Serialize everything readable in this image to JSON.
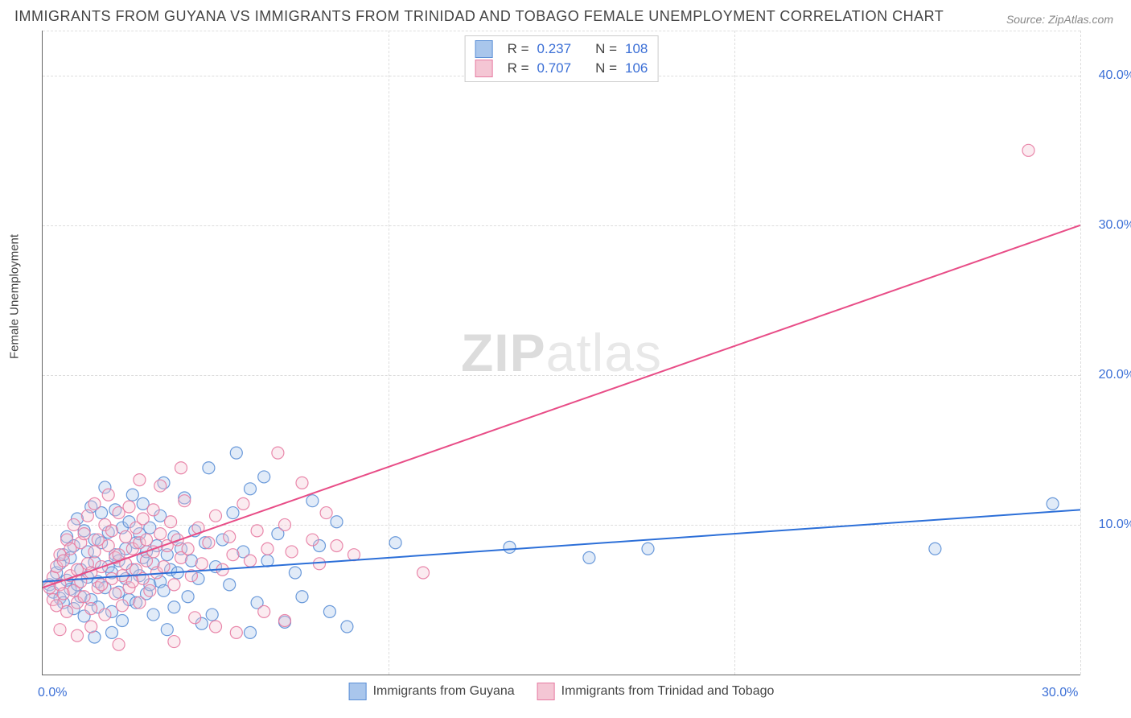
{
  "title": "IMMIGRANTS FROM GUYANA VS IMMIGRANTS FROM TRINIDAD AND TOBAGO FEMALE UNEMPLOYMENT CORRELATION CHART",
  "source": "Source: ZipAtlas.com",
  "y_axis_label": "Female Unemployment",
  "watermark_bold": "ZIP",
  "watermark_rest": "atlas",
  "chart": {
    "type": "scatter",
    "background_color": "#ffffff",
    "grid_color": "#dddddd",
    "axis_color": "#666666",
    "xlim": [
      0,
      30
    ],
    "ylim": [
      0,
      43
    ],
    "x_ticks": [
      0,
      10,
      20,
      30
    ],
    "x_tick_labels": [
      "0.0%",
      "",
      "",
      "30.0%"
    ],
    "y_ticks": [
      10,
      20,
      30,
      40
    ],
    "y_tick_labels": [
      "10.0%",
      "20.0%",
      "30.0%",
      "40.0%"
    ],
    "x_grid_positions": [
      10,
      20,
      30
    ],
    "y_grid_positions": [
      10,
      20,
      30,
      40,
      43
    ],
    "marker_radius": 7.5,
    "marker_stroke_opacity": 0.9
  },
  "series": [
    {
      "name": "Immigrants from Guyana",
      "color_fill": "#a9c6ec",
      "color_stroke": "#5b8fd6",
      "trend_color": "#2c6fd8",
      "R": "0.237",
      "N": "108",
      "trend": {
        "x1": 0,
        "y1": 6.2,
        "x2": 30,
        "y2": 11.0
      },
      "points": [
        [
          0.2,
          6.0
        ],
        [
          0.3,
          5.5
        ],
        [
          0.4,
          6.8
        ],
        [
          0.5,
          7.4
        ],
        [
          0.5,
          5.1
        ],
        [
          0.6,
          8.0
        ],
        [
          0.6,
          4.8
        ],
        [
          0.7,
          6.3
        ],
        [
          0.7,
          9.2
        ],
        [
          0.8,
          5.7
        ],
        [
          0.8,
          7.8
        ],
        [
          0.9,
          4.4
        ],
        [
          0.9,
          8.6
        ],
        [
          1.0,
          6.0
        ],
        [
          1.0,
          10.4
        ],
        [
          1.1,
          5.2
        ],
        [
          1.1,
          7.0
        ],
        [
          1.2,
          9.6
        ],
        [
          1.2,
          3.9
        ],
        [
          1.3,
          6.5
        ],
        [
          1.3,
          8.2
        ],
        [
          1.4,
          11.2
        ],
        [
          1.4,
          5.0
        ],
        [
          1.5,
          7.5
        ],
        [
          1.5,
          9.0
        ],
        [
          1.6,
          4.5
        ],
        [
          1.6,
          6.2
        ],
        [
          1.7,
          8.8
        ],
        [
          1.7,
          10.8
        ],
        [
          1.8,
          5.8
        ],
        [
          1.8,
          12.5
        ],
        [
          1.9,
          7.2
        ],
        [
          1.9,
          9.5
        ],
        [
          2.0,
          4.2
        ],
        [
          2.0,
          6.8
        ],
        [
          2.1,
          8.0
        ],
        [
          2.1,
          11.0
        ],
        [
          2.2,
          5.5
        ],
        [
          2.2,
          7.6
        ],
        [
          2.3,
          9.8
        ],
        [
          2.3,
          3.6
        ],
        [
          2.4,
          6.4
        ],
        [
          2.4,
          8.4
        ],
        [
          2.5,
          10.2
        ],
        [
          2.5,
          5.0
        ],
        [
          2.6,
          7.0
        ],
        [
          2.6,
          12.0
        ],
        [
          2.7,
          8.8
        ],
        [
          2.7,
          4.8
        ],
        [
          2.8,
          6.6
        ],
        [
          2.8,
          9.4
        ],
        [
          2.9,
          7.8
        ],
        [
          2.9,
          11.4
        ],
        [
          3.0,
          5.4
        ],
        [
          3.0,
          8.2
        ],
        [
          3.1,
          6.0
        ],
        [
          3.1,
          9.8
        ],
        [
          3.2,
          7.4
        ],
        [
          3.2,
          4.0
        ],
        [
          3.3,
          8.6
        ],
        [
          3.4,
          6.2
        ],
        [
          3.4,
          10.6
        ],
        [
          3.5,
          12.8
        ],
        [
          3.5,
          5.6
        ],
        [
          3.6,
          8.0
        ],
        [
          3.7,
          7.0
        ],
        [
          3.8,
          9.2
        ],
        [
          3.8,
          4.5
        ],
        [
          3.9,
          6.8
        ],
        [
          4.0,
          8.4
        ],
        [
          4.1,
          11.8
        ],
        [
          4.2,
          5.2
        ],
        [
          4.3,
          7.6
        ],
        [
          4.4,
          9.6
        ],
        [
          4.5,
          6.4
        ],
        [
          4.7,
          8.8
        ],
        [
          4.8,
          13.8
        ],
        [
          4.9,
          4.0
        ],
        [
          5.0,
          7.2
        ],
        [
          5.2,
          9.0
        ],
        [
          5.4,
          6.0
        ],
        [
          5.5,
          10.8
        ],
        [
          5.8,
          8.2
        ],
        [
          6.0,
          12.4
        ],
        [
          6.2,
          4.8
        ],
        [
          6.5,
          7.6
        ],
        [
          6.8,
          9.4
        ],
        [
          7.0,
          3.5
        ],
        [
          7.3,
          6.8
        ],
        [
          7.5,
          5.2
        ],
        [
          7.8,
          11.6
        ],
        [
          8.0,
          8.6
        ],
        [
          8.3,
          4.2
        ],
        [
          8.5,
          10.2
        ],
        [
          8.8,
          3.2
        ],
        [
          10.2,
          8.8
        ],
        [
          13.5,
          8.5
        ],
        [
          15.8,
          7.8
        ],
        [
          17.5,
          8.4
        ],
        [
          25.8,
          8.4
        ],
        [
          29.2,
          11.4
        ],
        [
          5.6,
          14.8
        ],
        [
          6.4,
          13.2
        ],
        [
          4.6,
          3.4
        ],
        [
          3.6,
          3.0
        ],
        [
          2.0,
          2.8
        ],
        [
          1.5,
          2.5
        ],
        [
          6.0,
          2.8
        ]
      ]
    },
    {
      "name": "Immigrants from Trinidad and Tobago",
      "color_fill": "#f4c6d4",
      "color_stroke": "#e77ba2",
      "trend_color": "#e84d87",
      "R": "0.707",
      "N": "106",
      "trend": {
        "x1": 0,
        "y1": 5.8,
        "x2": 30,
        "y2": 30.0
      },
      "points": [
        [
          0.2,
          5.8
        ],
        [
          0.3,
          6.5
        ],
        [
          0.3,
          5.0
        ],
        [
          0.4,
          7.2
        ],
        [
          0.4,
          4.6
        ],
        [
          0.5,
          6.0
        ],
        [
          0.5,
          8.0
        ],
        [
          0.6,
          5.4
        ],
        [
          0.6,
          7.6
        ],
        [
          0.7,
          9.0
        ],
        [
          0.7,
          4.2
        ],
        [
          0.8,
          6.6
        ],
        [
          0.8,
          8.4
        ],
        [
          0.9,
          5.6
        ],
        [
          0.9,
          10.0
        ],
        [
          1.0,
          7.0
        ],
        [
          1.0,
          4.8
        ],
        [
          1.1,
          8.8
        ],
        [
          1.1,
          6.2
        ],
        [
          1.2,
          9.4
        ],
        [
          1.2,
          5.2
        ],
        [
          1.3,
          7.4
        ],
        [
          1.3,
          10.6
        ],
        [
          1.4,
          6.8
        ],
        [
          1.4,
          4.4
        ],
        [
          1.5,
          8.2
        ],
        [
          1.5,
          11.4
        ],
        [
          1.6,
          5.8
        ],
        [
          1.6,
          9.0
        ],
        [
          1.7,
          7.2
        ],
        [
          1.7,
          6.0
        ],
        [
          1.8,
          10.0
        ],
        [
          1.8,
          4.0
        ],
        [
          1.9,
          8.6
        ],
        [
          1.9,
          12.0
        ],
        [
          2.0,
          6.4
        ],
        [
          2.0,
          9.6
        ],
        [
          2.1,
          7.8
        ],
        [
          2.1,
          5.4
        ],
        [
          2.2,
          8.0
        ],
        [
          2.2,
          10.8
        ],
        [
          2.3,
          6.6
        ],
        [
          2.3,
          4.6
        ],
        [
          2.4,
          9.2
        ],
        [
          2.4,
          7.4
        ],
        [
          2.5,
          11.2
        ],
        [
          2.5,
          5.8
        ],
        [
          2.6,
          8.4
        ],
        [
          2.6,
          6.2
        ],
        [
          2.7,
          9.8
        ],
        [
          2.7,
          7.0
        ],
        [
          2.8,
          4.8
        ],
        [
          2.8,
          8.8
        ],
        [
          2.9,
          10.4
        ],
        [
          2.9,
          6.4
        ],
        [
          3.0,
          7.6
        ],
        [
          3.0,
          9.0
        ],
        [
          3.1,
          5.6
        ],
        [
          3.2,
          8.2
        ],
        [
          3.2,
          11.0
        ],
        [
          3.3,
          6.8
        ],
        [
          3.4,
          9.4
        ],
        [
          3.5,
          7.2
        ],
        [
          3.6,
          8.6
        ],
        [
          3.7,
          10.2
        ],
        [
          3.8,
          6.0
        ],
        [
          3.9,
          9.0
        ],
        [
          4.0,
          7.8
        ],
        [
          4.1,
          11.6
        ],
        [
          4.2,
          8.4
        ],
        [
          4.3,
          6.6
        ],
        [
          4.5,
          9.8
        ],
        [
          4.6,
          7.4
        ],
        [
          4.8,
          8.8
        ],
        [
          5.0,
          10.6
        ],
        [
          5.2,
          7.0
        ],
        [
          5.4,
          9.2
        ],
        [
          5.5,
          8.0
        ],
        [
          5.8,
          11.4
        ],
        [
          6.0,
          7.6
        ],
        [
          6.2,
          9.6
        ],
        [
          6.5,
          8.4
        ],
        [
          6.8,
          14.8
        ],
        [
          7.0,
          10.0
        ],
        [
          7.2,
          8.2
        ],
        [
          7.5,
          12.8
        ],
        [
          7.8,
          9.0
        ],
        [
          8.0,
          7.4
        ],
        [
          8.2,
          10.8
        ],
        [
          8.5,
          8.6
        ],
        [
          4.4,
          3.8
        ],
        [
          5.0,
          3.2
        ],
        [
          5.6,
          2.8
        ],
        [
          3.8,
          2.2
        ],
        [
          2.2,
          2.0
        ],
        [
          1.0,
          2.6
        ],
        [
          0.5,
          3.0
        ],
        [
          6.4,
          4.2
        ],
        [
          7.0,
          3.6
        ],
        [
          4.0,
          13.8
        ],
        [
          3.4,
          12.6
        ],
        [
          2.8,
          13.0
        ],
        [
          9.0,
          8.0
        ],
        [
          11.0,
          6.8
        ],
        [
          28.5,
          35.0
        ],
        [
          1.4,
          3.2
        ]
      ]
    }
  ],
  "legend_top": {
    "r_label": "R =",
    "n_label": "N ="
  },
  "legend_bottom": {
    "items": [
      "Immigrants from Guyana",
      "Immigrants from Trinidad and Tobago"
    ]
  }
}
